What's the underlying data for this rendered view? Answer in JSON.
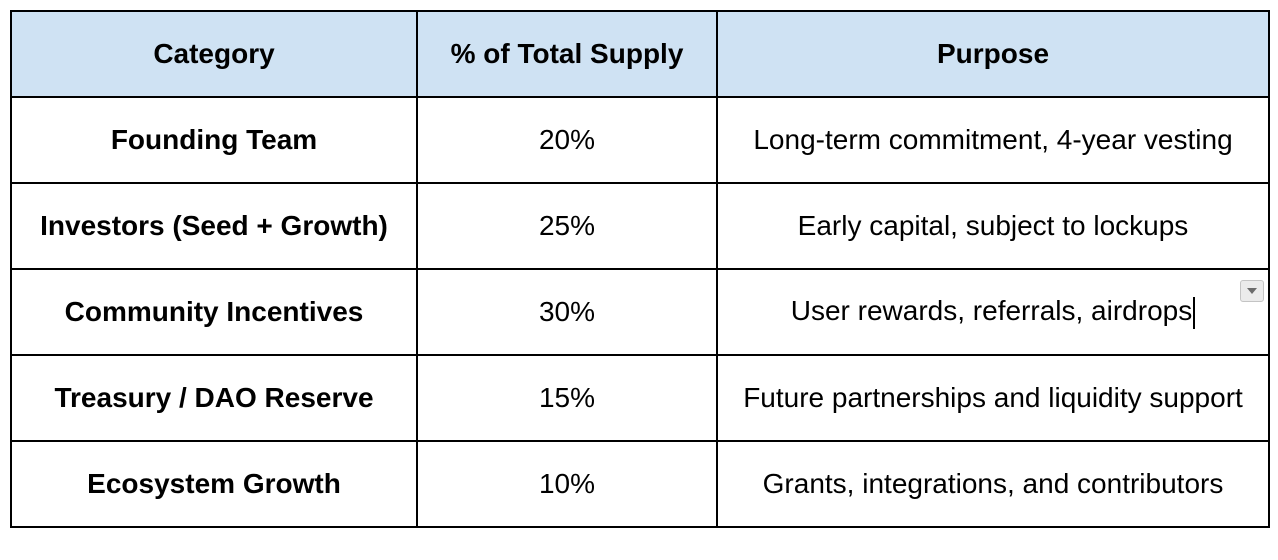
{
  "table": {
    "headers": [
      "Category",
      "% of Total Supply",
      "Purpose"
    ],
    "rows": [
      {
        "category": "Founding Team",
        "percent": "20%",
        "purpose": "Long-term commitment, 4-year vesting"
      },
      {
        "category": "Investors (Seed + Growth)",
        "percent": "25%",
        "purpose": "Early capital, subject to lockups"
      },
      {
        "category": "Community Incentives",
        "percent": "30%",
        "purpose": "User rewards, referrals, airdrops"
      },
      {
        "category": "Treasury / DAO Reserve",
        "percent": "15%",
        "purpose": "Future partnerships and liquidity support"
      },
      {
        "category": "Ecosystem Growth",
        "percent": "10%",
        "purpose": "Grants, integrations, and contributors"
      }
    ]
  },
  "icons": {
    "cell_dropdown": "chevron-down-icon"
  },
  "colors": {
    "header_background": "#cfe2f3",
    "border": "#000000"
  }
}
